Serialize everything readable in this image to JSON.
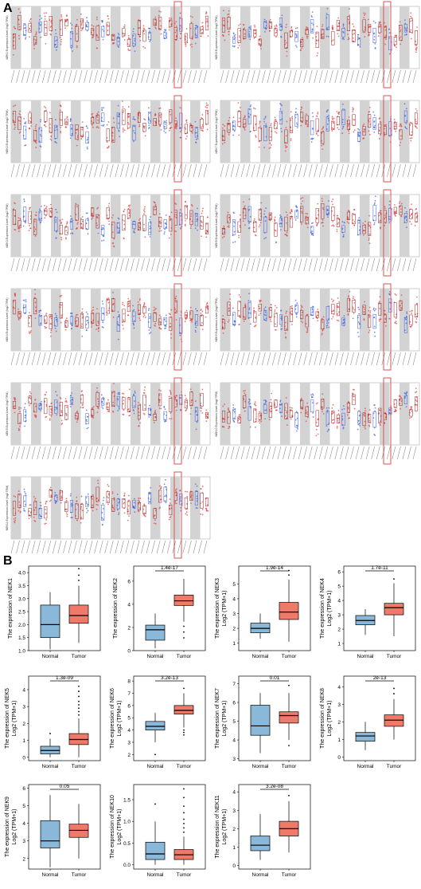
{
  "figure": {
    "panel_labels": [
      "A",
      "B"
    ]
  },
  "chart_data": [
    {
      "type": "boxplot-panel-grid",
      "panel": "A",
      "title": "",
      "description_visible": "Pan-cancer expression box plots (tumor vs normal) for NEK family genes; text too small to read",
      "panels": [
        {
          "gene": "NEK1",
          "ylabel": "NEK1 Expression Level (log2 TPM)"
        },
        {
          "gene": "NEK2",
          "ylabel": "NEK2 Expression Level (log2 TPM)"
        },
        {
          "gene": "NEK3",
          "ylabel": "NEK3 Expression Level (log2 TPM)"
        },
        {
          "gene": "NEK4",
          "ylabel": "NEK4 Expression Level (log2 TPM)"
        },
        {
          "gene": "NEK5",
          "ylabel": "NEK5 Expression Level (log2 TPM)"
        },
        {
          "gene": "NEK6",
          "ylabel": "NEK6 Expression Level (log2 TPM)"
        },
        {
          "gene": "NEK7",
          "ylabel": "NEK7 Expression Level (log2 TPM)"
        },
        {
          "gene": "NEK8",
          "ylabel": "NEK8 Expression Level (log2 TPM)"
        },
        {
          "gene": "NEK9",
          "ylabel": "NEK9 Expression Level (log2 TPM)"
        },
        {
          "gene": "NEK10",
          "ylabel": "NEK10 Expression Level (log2 TPM)"
        },
        {
          "gene": "NEK11",
          "ylabel": "NEK11 Expression Level (log2 TPM)"
        }
      ],
      "colors": {
        "tumor": "#e03a3a",
        "normal": "#3a5fe0",
        "shade": "#d3d3d3",
        "highlight": "#d9534f"
      }
    },
    {
      "type": "boxplot",
      "panel": "B",
      "categories": [
        "Normal",
        "Tumor"
      ],
      "colors": {
        "Normal": "#8ab8d8",
        "Tumor": "#f07a6a"
      },
      "plots": [
        {
          "gene": "NEK1",
          "ylabel": "The expression of NEK1",
          "ylabel2": "",
          "pvalue": "",
          "ylim": [
            1.0,
            4.25
          ],
          "yticks": [
            "1.0",
            "1.5",
            "2.0",
            "2.5",
            "3.0",
            "3.5",
            "4.0"
          ],
          "boxes": [
            {
              "q1": 1.5,
              "median": 2.0,
              "q3": 2.75,
              "lo": 1.05,
              "hi": 3.25,
              "out": []
            },
            {
              "q1": 2.05,
              "median": 2.35,
              "q3": 2.75,
              "lo": 1.3,
              "hi": 3.5,
              "out": [
                3.7,
                3.9,
                4.15
              ]
            }
          ]
        },
        {
          "gene": "NEK2",
          "ylabel": "The expression of NEK2",
          "ylabel2": "",
          "pvalue": "1.4e-17",
          "ylim": [
            0,
            7.3
          ],
          "yticks": [
            "0",
            "2",
            "4",
            "6"
          ],
          "boxes": [
            {
              "q1": 0.9,
              "median": 1.8,
              "q3": 2.2,
              "lo": 0.2,
              "hi": 3.2,
              "out": []
            },
            {
              "q1": 3.9,
              "median": 4.3,
              "q3": 4.8,
              "lo": 2.5,
              "hi": 6.2,
              "out": [
                1.1,
                1.6,
                2.1
              ]
            }
          ]
        },
        {
          "gene": "NEK3",
          "ylabel": "The expression of NEK3",
          "ylabel2": "Log2 (TPM+1)",
          "pvalue": "1.9e-14",
          "ylim": [
            0.5,
            6.2
          ],
          "yticks": [
            "1",
            "2",
            "3",
            "4",
            "5"
          ],
          "boxes": [
            {
              "q1": 1.7,
              "median": 2.0,
              "q3": 2.35,
              "lo": 1.3,
              "hi": 3.0,
              "out": []
            },
            {
              "q1": 2.6,
              "median": 3.1,
              "q3": 3.75,
              "lo": 1.1,
              "hi": 5.3,
              "out": [
                5.6,
                5.9
              ]
            }
          ]
        },
        {
          "gene": "NEK4",
          "ylabel": "The expression of NEK4",
          "ylabel2": "Log2 (TPM+1)",
          "pvalue": "1.7e-11",
          "ylim": [
            0.5,
            6.4
          ],
          "yticks": [
            "1",
            "2",
            "3",
            "4",
            "5",
            "6"
          ],
          "boxes": [
            {
              "q1": 2.3,
              "median": 2.6,
              "q3": 2.95,
              "lo": 1.6,
              "hi": 3.4,
              "out": []
            },
            {
              "q1": 3.0,
              "median": 3.5,
              "q3": 3.8,
              "lo": 1.5,
              "hi": 5.2,
              "out": [
                5.5
              ]
            }
          ]
        },
        {
          "gene": "NEK5",
          "ylabel": "The expression of NEK5",
          "ylabel2": "Log2 (TPM+1)",
          "pvalue": "1.3e-09",
          "ylim": [
            -0.2,
            4.8
          ],
          "yticks": [
            "0",
            "1",
            "2",
            "3",
            "4"
          ],
          "boxes": [
            {
              "q1": 0.2,
              "median": 0.4,
              "q3": 0.65,
              "lo": 0.0,
              "hi": 1.1,
              "out": [
                1.4
              ]
            },
            {
              "q1": 0.75,
              "median": 1.05,
              "q3": 1.4,
              "lo": 0.0,
              "hi": 2.3,
              "out": [
                2.5,
                2.7,
                2.9,
                3.1,
                3.3,
                3.6,
                3.9,
                4.2
              ]
            }
          ]
        },
        {
          "gene": "NEK6",
          "ylabel": "The expression of NEK6",
          "ylabel2": "Log2 (TPM+1)",
          "pvalue": "3.2e-13",
          "ylim": [
            1.5,
            8.4
          ],
          "yticks": [
            "2",
            "3",
            "4",
            "5",
            "6",
            "7",
            "8"
          ],
          "boxes": [
            {
              "q1": 4.0,
              "median": 4.3,
              "q3": 4.7,
              "lo": 3.0,
              "hi": 5.4,
              "out": [
                2.0
              ]
            },
            {
              "q1": 5.3,
              "median": 5.6,
              "q3": 6.0,
              "lo": 4.2,
              "hi": 7.0,
              "out": [
                3.6,
                3.8,
                4.0,
                7.4
              ]
            }
          ]
        },
        {
          "gene": "NEK7",
          "ylabel": "The expression of NEK7",
          "ylabel2": "Log2 (TPM+1)",
          "pvalue": "0.01",
          "ylim": [
            2.9,
            7.4
          ],
          "yticks": [
            "3",
            "4",
            "5",
            "6",
            "7"
          ],
          "boxes": [
            {
              "q1": 4.25,
              "median": 4.75,
              "q3": 5.85,
              "lo": 3.3,
              "hi": 6.5,
              "out": []
            },
            {
              "q1": 4.9,
              "median": 5.3,
              "q3": 5.5,
              "lo": 4.0,
              "hi": 6.5,
              "out": [
                3.7,
                6.9
              ]
            }
          ]
        },
        {
          "gene": "NEK8",
          "ylabel": "The expression of NEK8",
          "ylabel2": "Log2 (TPM+1)",
          "pvalue": "2e-13",
          "ylim": [
            -0.2,
            4.6
          ],
          "yticks": [
            "0",
            "1",
            "2",
            "3",
            "4"
          ],
          "boxes": [
            {
              "q1": 0.9,
              "median": 1.2,
              "q3": 1.4,
              "lo": 0.4,
              "hi": 2.0,
              "out": []
            },
            {
              "q1": 1.75,
              "median": 2.1,
              "q3": 2.4,
              "lo": 1.0,
              "hi": 3.3,
              "out": [
                3.6,
                3.9
              ]
            }
          ]
        },
        {
          "gene": "NEK9",
          "ylabel": "The expression of NEK9",
          "ylabel2": "Log2 (TPM+1)",
          "pvalue": "0.05",
          "ylim": [
            1.4,
            6.2
          ],
          "yticks": [
            "2",
            "3",
            "4",
            "5",
            "6"
          ],
          "boxes": [
            {
              "q1": 2.6,
              "median": 3.0,
              "q3": 4.15,
              "lo": 1.5,
              "hi": 5.6,
              "out": []
            },
            {
              "q1": 3.2,
              "median": 3.6,
              "q3": 3.95,
              "lo": 2.0,
              "hi": 5.1,
              "out": []
            }
          ]
        },
        {
          "gene": "NEK10",
          "ylabel": "The expression of NEK10",
          "ylabel2": "Log2 (TPM+1)",
          "pvalue": "",
          "ylim": [
            -0.1,
            1.85
          ],
          "yticks": [
            "0.0",
            "0.5",
            "1.0",
            "1.5"
          ],
          "boxes": [
            {
              "q1": 0.12,
              "median": 0.25,
              "q3": 0.52,
              "lo": 0.0,
              "hi": 1.0,
              "out": [
                1.4
              ]
            },
            {
              "q1": 0.12,
              "median": 0.23,
              "q3": 0.35,
              "lo": 0.0,
              "hi": 0.65,
              "out": [
                0.75,
                0.85,
                0.95,
                1.05,
                1.2,
                1.35,
                1.55,
                1.75
              ]
            }
          ]
        },
        {
          "gene": "NEK11",
          "ylabel": "The expression of NEK11",
          "ylabel2": "Log2 (TPM+1)",
          "pvalue": "3.2e-08",
          "ylim": [
            -0.2,
            4.4
          ],
          "yticks": [
            "0",
            "1",
            "2",
            "3",
            "4"
          ],
          "boxes": [
            {
              "q1": 0.8,
              "median": 1.1,
              "q3": 1.6,
              "lo": 0.3,
              "hi": 2.8,
              "out": []
            },
            {
              "q1": 1.6,
              "median": 2.0,
              "q3": 2.4,
              "lo": 0.7,
              "hi": 3.5,
              "out": [
                3.8
              ]
            }
          ]
        }
      ]
    }
  ]
}
